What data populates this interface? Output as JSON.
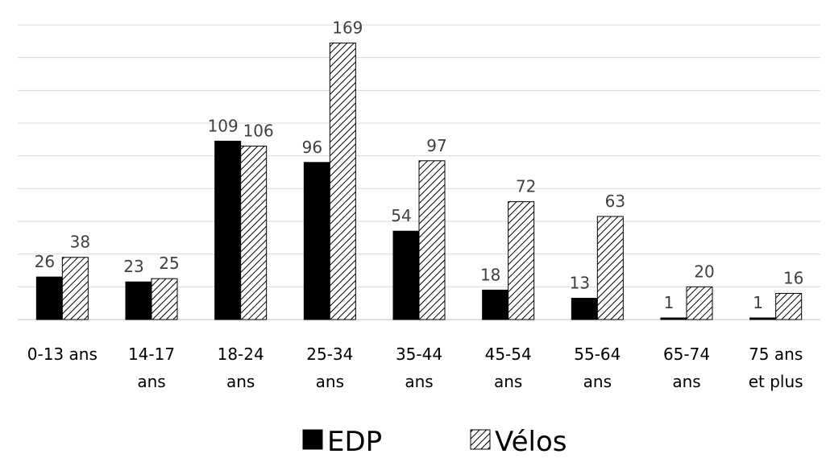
{
  "chart_data": {
    "type": "bar",
    "categories": [
      [
        "0-13 ans"
      ],
      [
        "14-17",
        "ans"
      ],
      [
        "18-24",
        "ans"
      ],
      [
        "25-34",
        "ans"
      ],
      [
        "35-44",
        "ans"
      ],
      [
        "45-54",
        "ans"
      ],
      [
        "55-64",
        "ans"
      ],
      [
        "65-74",
        "ans"
      ],
      [
        "75 ans",
        "et plus"
      ]
    ],
    "series": [
      {
        "name": "EDP",
        "values": [
          26,
          23,
          109,
          96,
          54,
          18,
          13,
          1,
          1
        ],
        "color": "#000000",
        "pattern": "solid"
      },
      {
        "name": "Vélos",
        "values": [
          38,
          25,
          106,
          169,
          97,
          72,
          63,
          20,
          16
        ],
        "color": "#000000",
        "pattern": "diagonal-hatch"
      }
    ],
    "ylim": [
      0,
      180
    ],
    "grid": true,
    "legend_position": "bottom"
  }
}
